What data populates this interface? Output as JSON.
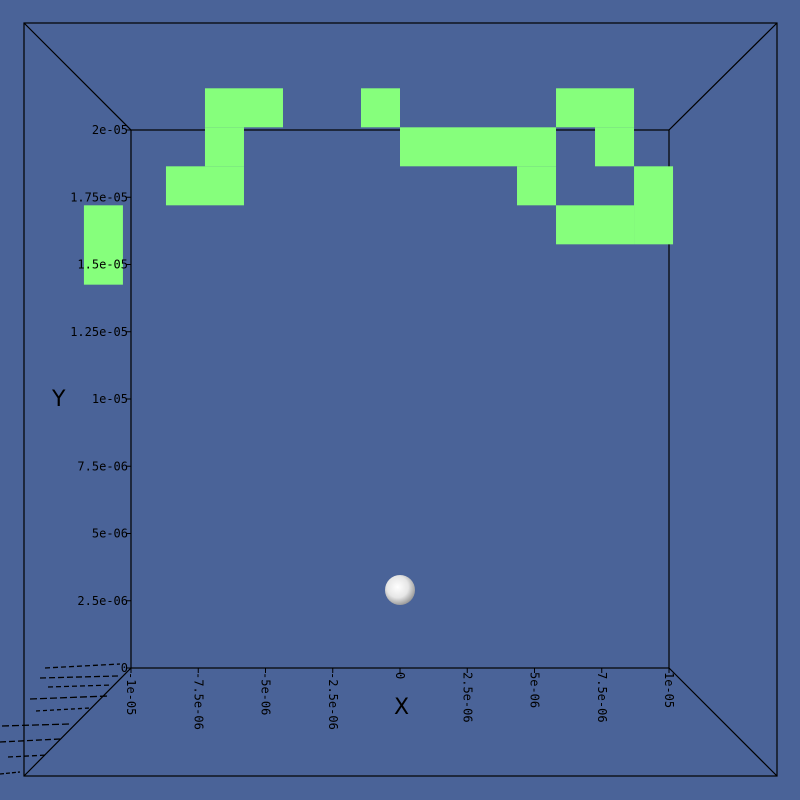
{
  "viewer": {
    "background_color": "#4a6398",
    "cell_color": "#86ff7c",
    "particle_color": "#ffffff",
    "line_color": "#000000"
  },
  "chart_data": {
    "type": "scatter",
    "title": "",
    "xlabel": "X",
    "ylabel": "Y",
    "xlim": [
      -1e-05,
      1e-05
    ],
    "ylim": [
      0,
      2e-05
    ],
    "x_ticks": [
      "-1e-05",
      "-7.5e-06",
      "-5e-06",
      "-2.5e-06",
      "0",
      "2.5e-06",
      "5e-06",
      "7.5e-06",
      "1e-05"
    ],
    "x_tick_values": [
      -1e-05,
      -7.5e-06,
      -5e-06,
      -2.5e-06,
      0,
      2.5e-06,
      5e-06,
      7.5e-06,
      1e-05
    ],
    "y_ticks": [
      "0",
      "2.5e-06",
      "5e-06",
      "7.5e-06",
      "1e-05",
      "1.25e-05",
      "1.5e-05",
      "1.75e-05",
      "2e-05"
    ],
    "y_tick_values": [
      0,
      2.5e-06,
      5e-06,
      7.5e-06,
      1e-05,
      1.25e-05,
      1.5e-05,
      1.75e-05,
      2e-05
    ],
    "grid": false,
    "particle": {
      "x": 0,
      "y": 2.9e-06
    },
    "cells": [
      {
        "x0": -1.175e-05,
        "x1": -1.03e-05,
        "y0": 1.425e-05,
        "y1": 1.72e-05
      },
      {
        "x0": -8.7e-06,
        "x1": -5.8e-06,
        "y0": 1.72e-05,
        "y1": 1.865e-05
      },
      {
        "x0": -7.25e-06,
        "x1": -5.8e-06,
        "y0": 1.865e-05,
        "y1": 2.01e-05
      },
      {
        "x0": -7.25e-06,
        "x1": -4.35e-06,
        "y0": 2.01e-05,
        "y1": 2.155e-05
      },
      {
        "x0": -1.45e-06,
        "x1": 0,
        "y0": 2.01e-05,
        "y1": 2.155e-05
      },
      {
        "x0": 0,
        "x1": 5.8e-06,
        "y0": 1.865e-05,
        "y1": 2.01e-05
      },
      {
        "x0": 4.35e-06,
        "x1": 5.8e-06,
        "y0": 1.72e-05,
        "y1": 1.865e-05
      },
      {
        "x0": 5.8e-06,
        "x1": 8.7e-06,
        "y0": 2.01e-05,
        "y1": 2.155e-05
      },
      {
        "x0": 7.25e-06,
        "x1": 8.7e-06,
        "y0": 1.865e-05,
        "y1": 2.01e-05
      },
      {
        "x0": 8.7e-06,
        "x1": 1.015e-05,
        "y0": 1.575e-05,
        "y1": 1.865e-05
      },
      {
        "x0": 5.8e-06,
        "x1": 8.7e-06,
        "y0": 1.575e-05,
        "y1": 1.72e-05
      }
    ]
  }
}
